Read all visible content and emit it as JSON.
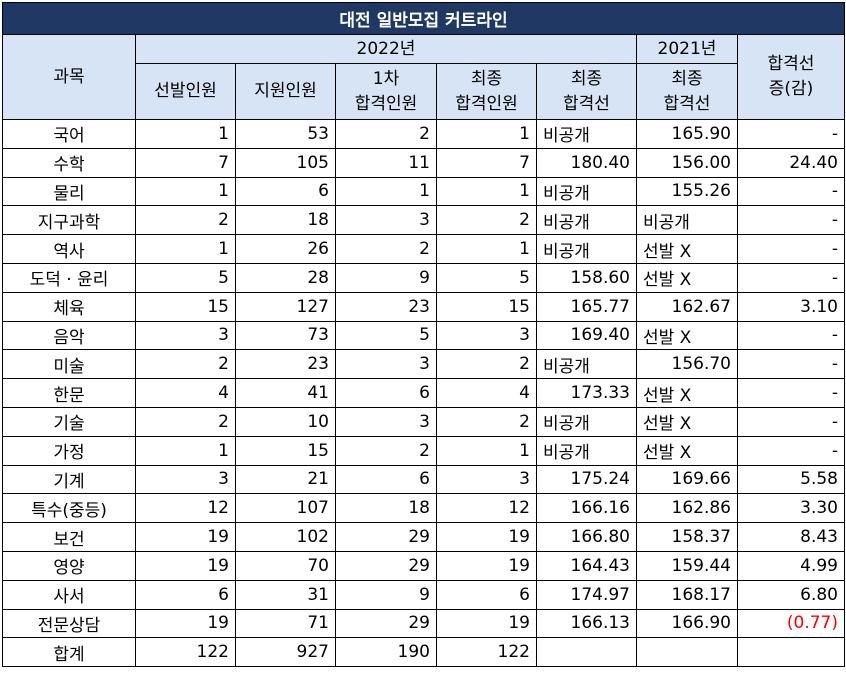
{
  "title": "대전 일반모집 커트라인",
  "header": {
    "subject": "과목",
    "year_2022": "2022년",
    "year_2021": "2021년",
    "change_line1": "합격선",
    "change_line2": "증(감)",
    "cols": {
      "applicants_sel": "선발인원",
      "applicants": "지원인원",
      "first_l1": "1차",
      "first_l2": "합격인원",
      "final_l1": "최종",
      "final_l2": "합격인원",
      "cut_l1": "최종",
      "cut_l2": "합격선",
      "cut21_l1": "최종",
      "cut21_l2": "합격선"
    }
  },
  "rows": [
    {
      "subject": "국어",
      "selected": "1",
      "applied": "53",
      "first": "2",
      "final": "1",
      "cut2022": "비공개",
      "cut2021": "165.90",
      "diff": "-"
    },
    {
      "subject": "수학",
      "selected": "7",
      "applied": "105",
      "first": "11",
      "final": "7",
      "cut2022": "180.40",
      "cut2021": "156.00",
      "diff": "24.40"
    },
    {
      "subject": "물리",
      "selected": "1",
      "applied": "6",
      "first": "1",
      "final": "1",
      "cut2022": "비공개",
      "cut2021": "155.26",
      "diff": "-"
    },
    {
      "subject": "지구과학",
      "selected": "2",
      "applied": "18",
      "first": "3",
      "final": "2",
      "cut2022": "비공개",
      "cut2021": "비공개",
      "diff": "-"
    },
    {
      "subject": "역사",
      "selected": "1",
      "applied": "26",
      "first": "2",
      "final": "1",
      "cut2022": "비공개",
      "cut2021": "선발 X",
      "diff": "-"
    },
    {
      "subject": "도덕 · 윤리",
      "selected": "5",
      "applied": "28",
      "first": "9",
      "final": "5",
      "cut2022": "158.60",
      "cut2021": "선발 X",
      "diff": "-"
    },
    {
      "subject": "체육",
      "selected": "15",
      "applied": "127",
      "first": "23",
      "final": "15",
      "cut2022": "165.77",
      "cut2021": "162.67",
      "diff": "3.10"
    },
    {
      "subject": "음악",
      "selected": "3",
      "applied": "73",
      "first": "5",
      "final": "3",
      "cut2022": "169.40",
      "cut2021": "선발 X",
      "diff": "-"
    },
    {
      "subject": "미술",
      "selected": "2",
      "applied": "23",
      "first": "3",
      "final": "2",
      "cut2022": "비공개",
      "cut2021": "156.70",
      "diff": "-"
    },
    {
      "subject": "한문",
      "selected": "4",
      "applied": "41",
      "first": "6",
      "final": "4",
      "cut2022": "173.33",
      "cut2021": "선발 X",
      "diff": "-"
    },
    {
      "subject": "기술",
      "selected": "2",
      "applied": "10",
      "first": "3",
      "final": "2",
      "cut2022": "비공개",
      "cut2021": "선발 X",
      "diff": "-"
    },
    {
      "subject": "가정",
      "selected": "1",
      "applied": "15",
      "first": "2",
      "final": "1",
      "cut2022": "비공개",
      "cut2021": "선발 X",
      "diff": "-"
    },
    {
      "subject": "기계",
      "selected": "3",
      "applied": "21",
      "first": "6",
      "final": "3",
      "cut2022": "175.24",
      "cut2021": "169.66",
      "diff": "5.58"
    },
    {
      "subject": "특수(중등)",
      "selected": "12",
      "applied": "107",
      "first": "18",
      "final": "12",
      "cut2022": "166.16",
      "cut2021": "162.86",
      "diff": "3.30"
    },
    {
      "subject": "보건",
      "selected": "19",
      "applied": "102",
      "first": "29",
      "final": "19",
      "cut2022": "166.80",
      "cut2021": "158.37",
      "diff": "8.43"
    },
    {
      "subject": "영양",
      "selected": "19",
      "applied": "70",
      "first": "29",
      "final": "19",
      "cut2022": "164.43",
      "cut2021": "159.44",
      "diff": "4.99"
    },
    {
      "subject": "사서",
      "selected": "6",
      "applied": "31",
      "first": "9",
      "final": "6",
      "cut2022": "174.97",
      "cut2021": "168.17",
      "diff": "6.80"
    },
    {
      "subject": "전문상담",
      "selected": "19",
      "applied": "71",
      "first": "29",
      "final": "19",
      "cut2022": "166.13",
      "cut2021": "166.90",
      "diff": "(0.77)",
      "diff_negative": true
    }
  ],
  "total": {
    "subject": "합계",
    "selected": "122",
    "applied": "927",
    "first": "190",
    "final": "122",
    "cut2022": "",
    "cut2021": "",
    "diff": ""
  },
  "colors": {
    "title_bg": "#1f3864",
    "header_bg": "#d6e4f5",
    "negative": "#ff0000"
  }
}
